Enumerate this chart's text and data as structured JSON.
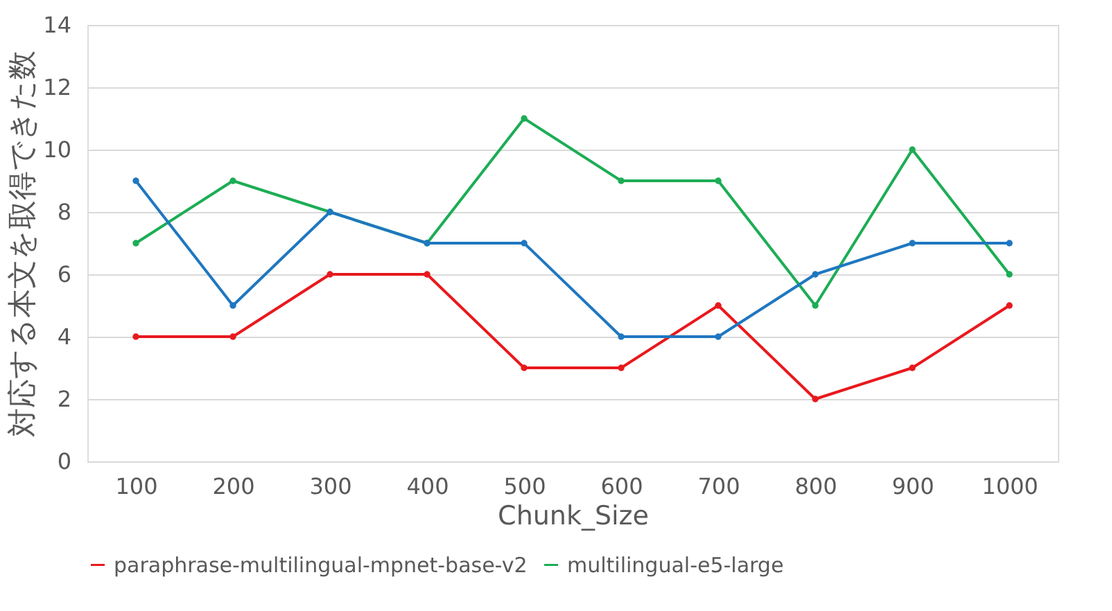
{
  "chart_data": {
    "type": "line",
    "xlabel": "Chunk_Size",
    "ylabel": "対応する本文を取得できた数",
    "categories": [
      "100",
      "200",
      "300",
      "400",
      "500",
      "600",
      "700",
      "800",
      "900",
      "1000"
    ],
    "series": [
      {
        "name": "paraphrase-multilingual-mpnet-base-v2",
        "color": "#e8191d",
        "values": [
          4,
          4,
          6,
          6,
          3,
          3,
          5,
          2,
          3,
          5
        ]
      },
      {
        "name": "multilingual-e5-large",
        "color": "#1cad55",
        "values": [
          7,
          9,
          8,
          7,
          11,
          9,
          9,
          5,
          10,
          6
        ]
      },
      {
        "color": "#1f77c0",
        "values": [
          9,
          5,
          8,
          7,
          7,
          4,
          4,
          6,
          7,
          7
        ]
      }
    ],
    "ylim": [
      0,
      14
    ],
    "yticks": [
      0,
      2,
      4,
      6,
      8,
      10,
      12,
      14
    ],
    "grid": "y",
    "legend": "bottom",
    "marker": "circle",
    "line_style": "solid"
  }
}
